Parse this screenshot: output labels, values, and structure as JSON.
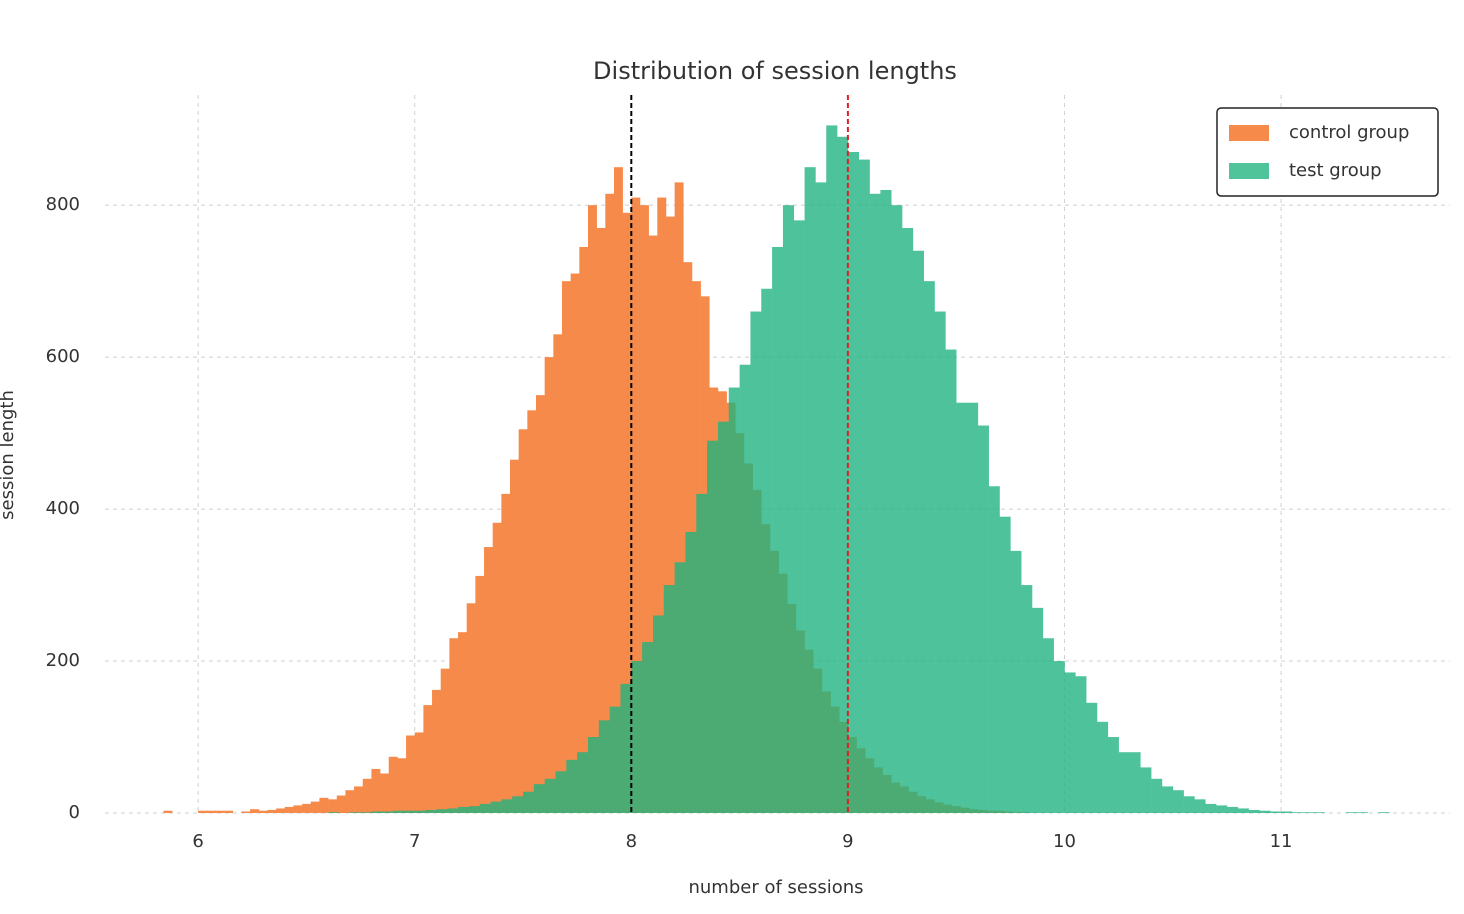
{
  "chart_data": {
    "type": "histogram",
    "title": "Distribution of session lengths",
    "x_label": "number of sessions",
    "y_label": "session length",
    "xlim": [
      5.57,
      11.78
    ],
    "ylim": [
      0,
      945
    ],
    "xticks": [
      6,
      7,
      8,
      9,
      10,
      11
    ],
    "yticks": [
      0,
      200,
      400,
      600,
      800
    ],
    "grid": true,
    "legend": "upper right",
    "series": [
      {
        "name": "control group",
        "color": "#f68a4a",
        "alpha": 1,
        "bins": [
          5.84,
          5.88,
          5.92,
          5.96,
          6.0,
          6.04,
          6.08,
          6.12,
          6.16,
          6.2,
          6.24,
          6.28,
          6.32,
          6.36,
          6.4,
          6.44,
          6.48,
          6.52,
          6.56,
          6.6,
          6.64,
          6.68,
          6.72,
          6.76,
          6.8,
          6.84,
          6.88,
          6.92,
          6.96,
          7.0,
          7.04,
          7.08,
          7.12,
          7.16,
          7.2,
          7.24,
          7.28,
          7.32,
          7.36,
          7.4,
          7.44,
          7.48,
          7.52,
          7.56,
          7.6,
          7.64,
          7.68,
          7.72,
          7.76,
          7.8,
          7.84,
          7.88,
          7.92,
          7.96,
          8.0,
          8.04,
          8.08,
          8.12,
          8.16,
          8.2,
          8.24,
          8.28,
          8.32,
          8.36,
          8.4,
          8.44,
          8.48,
          8.52,
          8.56,
          8.6,
          8.64,
          8.68,
          8.72,
          8.76,
          8.8,
          8.84,
          8.88,
          8.92,
          8.96,
          9.0,
          9.04,
          9.08,
          9.12,
          9.16,
          9.2,
          9.24,
          9.28,
          9.32,
          9.36,
          9.4,
          9.44,
          9.48,
          9.52,
          9.56,
          9.6,
          9.64,
          9.68,
          9.72,
          9.76,
          9.8,
          9.84
        ],
        "values": [
          3,
          0,
          0,
          0,
          3,
          3,
          3,
          3,
          0,
          2,
          5,
          3,
          4,
          6,
          8,
          10,
          12,
          15,
          20,
          18,
          23,
          30,
          35,
          45,
          58,
          52,
          74,
          72,
          102,
          106,
          142,
          162,
          190,
          230,
          238,
          276,
          312,
          350,
          382,
          420,
          465,
          505,
          530,
          550,
          600,
          630,
          700,
          710,
          745,
          800,
          770,
          815,
          850,
          790,
          810,
          800,
          760,
          810,
          785,
          830,
          725,
          700,
          680,
          560,
          555,
          540,
          500,
          460,
          425,
          380,
          345,
          315,
          275,
          240,
          215,
          190,
          160,
          140,
          120,
          100,
          85,
          72,
          60,
          50,
          40,
          35,
          28,
          22,
          18,
          14,
          11,
          9,
          7,
          5,
          4,
          3,
          3,
          2,
          1,
          1
        ]
      },
      {
        "name": "test group",
        "color": "#1db37f",
        "alpha": 0.78,
        "bins": [
          6.5,
          6.55,
          6.6,
          6.65,
          6.7,
          6.75,
          6.8,
          6.85,
          6.9,
          6.95,
          7.0,
          7.05,
          7.1,
          7.15,
          7.2,
          7.25,
          7.3,
          7.35,
          7.4,
          7.45,
          7.5,
          7.55,
          7.6,
          7.65,
          7.7,
          7.75,
          7.8,
          7.85,
          7.9,
          7.95,
          8.0,
          8.05,
          8.1,
          8.15,
          8.2,
          8.25,
          8.3,
          8.35,
          8.4,
          8.45,
          8.5,
          8.55,
          8.6,
          8.65,
          8.7,
          8.75,
          8.8,
          8.85,
          8.9,
          8.95,
          9.0,
          9.05,
          9.1,
          9.15,
          9.2,
          9.25,
          9.3,
          9.35,
          9.4,
          9.45,
          9.5,
          9.55,
          9.6,
          9.65,
          9.7,
          9.75,
          9.8,
          9.85,
          9.9,
          9.95,
          10.0,
          10.05,
          10.1,
          10.15,
          10.2,
          10.25,
          10.3,
          10.35,
          10.4,
          10.45,
          10.5,
          10.55,
          10.6,
          10.65,
          10.7,
          10.75,
          10.8,
          10.85,
          10.9,
          10.95,
          11.0,
          11.05,
          11.1,
          11.15,
          11.2,
          11.25,
          11.3,
          11.35,
          11.4,
          11.45,
          11.5
        ],
        "values": [
          0,
          0,
          1,
          0,
          1,
          1,
          2,
          2,
          3,
          3,
          3,
          4,
          5,
          6,
          8,
          9,
          12,
          15,
          18,
          22,
          28,
          38,
          45,
          55,
          70,
          80,
          100,
          122,
          140,
          170,
          200,
          225,
          260,
          300,
          330,
          370,
          420,
          490,
          515,
          560,
          590,
          660,
          690,
          745,
          800,
          780,
          850,
          830,
          905,
          890,
          870,
          860,
          815,
          820,
          800,
          770,
          740,
          700,
          660,
          610,
          540,
          540,
          510,
          430,
          390,
          345,
          300,
          270,
          230,
          200,
          185,
          180,
          145,
          120,
          100,
          80,
          80,
          60,
          45,
          35,
          30,
          22,
          18,
          12,
          10,
          8,
          6,
          4,
          3,
          2,
          2,
          1,
          1,
          1,
          0,
          0,
          1,
          1,
          0,
          1
        ]
      }
    ],
    "vlines": [
      {
        "x": 8,
        "color": "#000000"
      },
      {
        "x": 9,
        "color": "#e02020"
      }
    ]
  }
}
